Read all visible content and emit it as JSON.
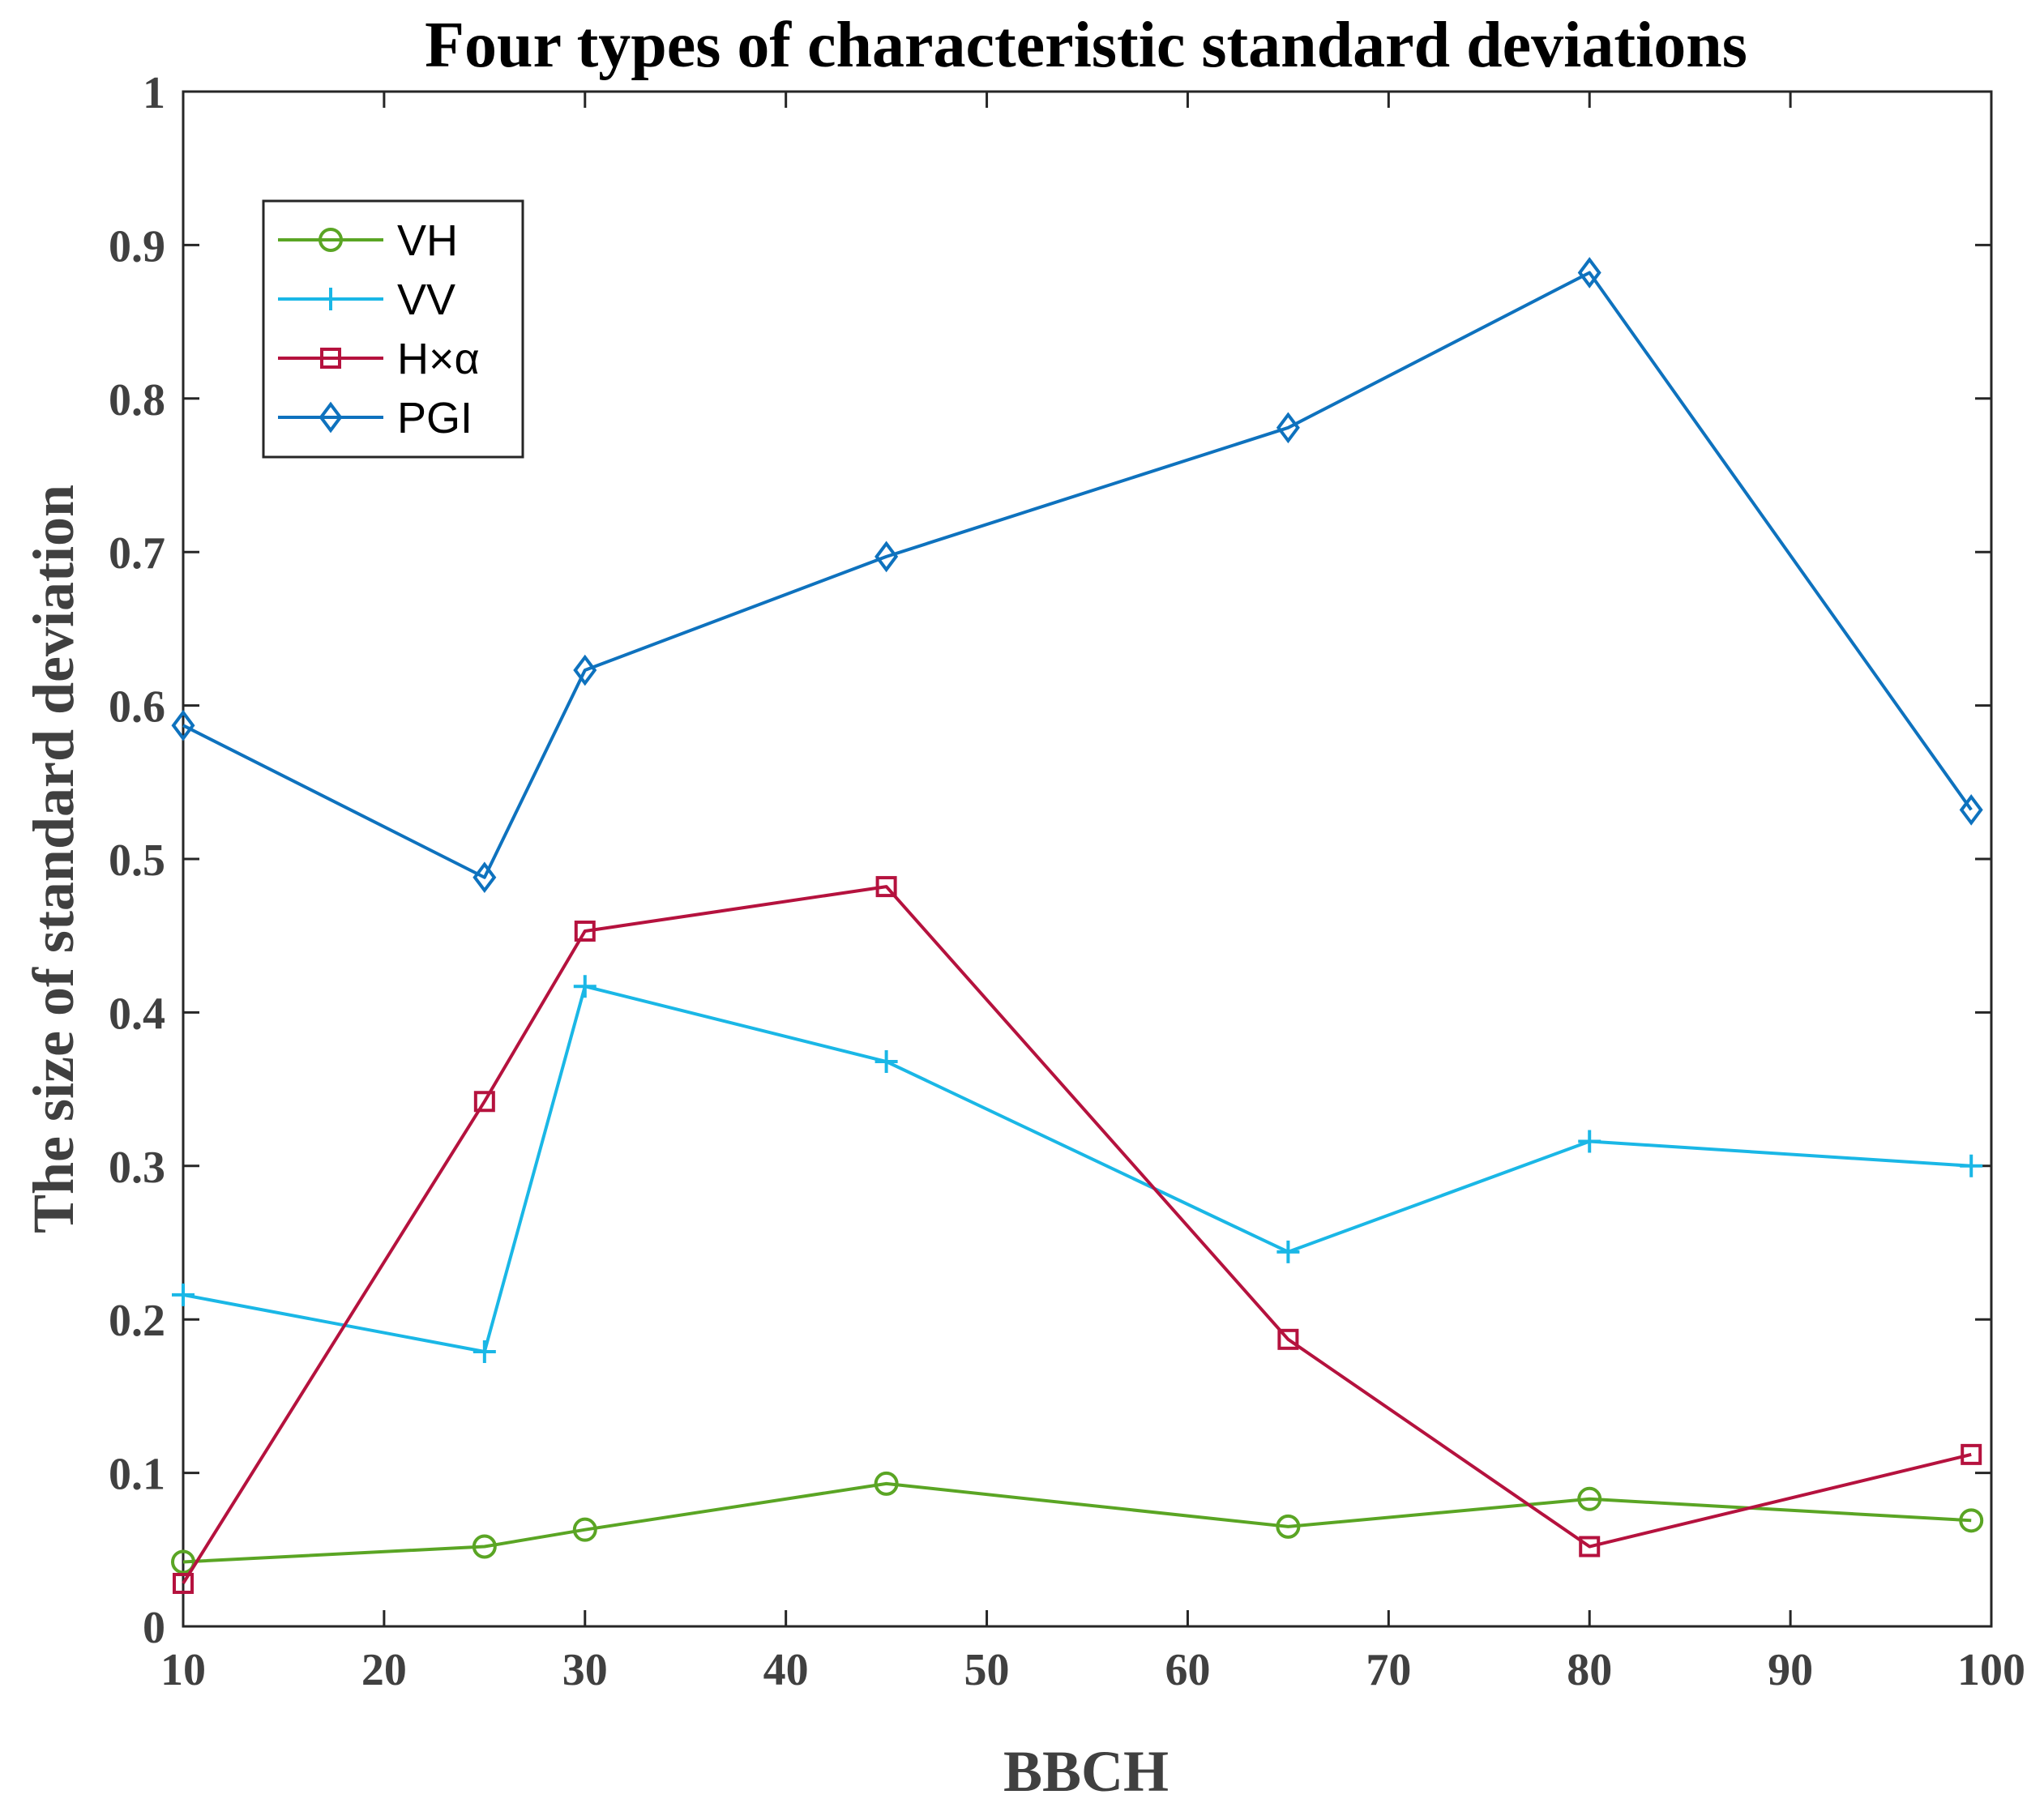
{
  "chart_data": {
    "type": "line",
    "title": "Four types of characteristic standard deviations",
    "xlabel": "BBCH",
    "ylabel": "The size of standard deviation",
    "xlim": [
      10,
      100
    ],
    "ylim": [
      0,
      1
    ],
    "x_ticks": [
      "10",
      "20",
      "30",
      "40",
      "50",
      "60",
      "70",
      "80",
      "90",
      "100"
    ],
    "y_ticks": [
      "0",
      "0.1",
      "0.2",
      "0.3",
      "0.4",
      "0.5",
      "0.6",
      "0.7",
      "0.8",
      "0.9",
      "1"
    ],
    "x": [
      10,
      25,
      30,
      45,
      65,
      80,
      99
    ],
    "legend_position": "top-left",
    "grid": false,
    "series": [
      {
        "name": "VH",
        "color": "#5aa524",
        "marker": "circle",
        "values": [
          0.042,
          0.052,
          0.063,
          0.093,
          0.065,
          0.083,
          0.069
        ]
      },
      {
        "name": "VV",
        "color": "#1ab7e6",
        "marker": "plus",
        "values": [
          0.216,
          0.179,
          0.417,
          0.368,
          0.244,
          0.316,
          0.3
        ]
      },
      {
        "name": "H×α",
        "color": "#b5123e",
        "marker": "square",
        "values": [
          0.028,
          0.342,
          0.453,
          0.482,
          0.187,
          0.052,
          0.112
        ]
      },
      {
        "name": "PGI",
        "color": "#0e72be",
        "marker": "diamond",
        "values": [
          0.587,
          0.488,
          0.623,
          0.697,
          0.781,
          0.882,
          0.532
        ]
      }
    ]
  }
}
